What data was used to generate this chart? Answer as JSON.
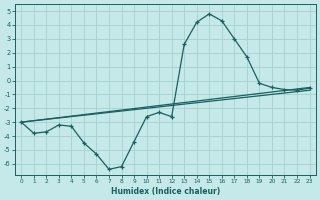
{
  "xlabel": "Humidex (Indice chaleur)",
  "bg_color": "#c5e8e8",
  "grid_color": "#a8d0d0",
  "line_color": "#1a6060",
  "xlim": [
    -0.5,
    23.5
  ],
  "ylim": [
    -6.8,
    5.5
  ],
  "yticks": [
    -6,
    -5,
    -4,
    -3,
    -2,
    -1,
    0,
    1,
    2,
    3,
    4,
    5
  ],
  "xticks": [
    0,
    1,
    2,
    3,
    4,
    5,
    6,
    7,
    8,
    9,
    10,
    11,
    12,
    13,
    14,
    15,
    16,
    17,
    18,
    19,
    20,
    21,
    22,
    23
  ],
  "line1_x": [
    0,
    1,
    2,
    3,
    4,
    5,
    6,
    7,
    8,
    9,
    10,
    11,
    12,
    13,
    14,
    15,
    16,
    17,
    18,
    19,
    20,
    21,
    22,
    23
  ],
  "line1_y": [
    -3.0,
    -3.8,
    -3.7,
    -3.2,
    -3.3,
    -4.5,
    -5.3,
    -6.4,
    -6.2,
    -4.4,
    -2.6,
    -2.3,
    -2.6,
    2.6,
    4.2,
    4.8,
    4.3,
    3.0,
    1.7,
    -0.2,
    -0.5,
    -0.65,
    -0.7,
    -0.55
  ],
  "line2_x": [
    0,
    23
  ],
  "line2_y": [
    -3.0,
    -0.5
  ],
  "line3_x": [
    0,
    23
  ],
  "line3_y": [
    -3.0,
    -0.7
  ]
}
